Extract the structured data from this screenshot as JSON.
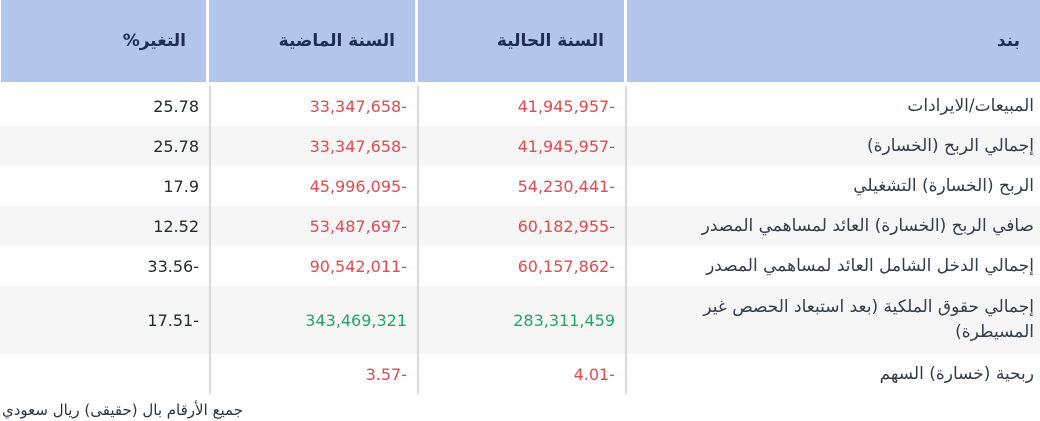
{
  "colors": {
    "header_bg": "#b3c5ea",
    "header_text": "#1e2c52",
    "label_text": "#333c4a",
    "negative_value": "#e04a50",
    "positive_value": "#21a567",
    "plain_value": "#24292e",
    "alt_row_bg": "#f6f6f7",
    "column_divider": "#d9d9d9"
  },
  "table": {
    "columns": [
      {
        "key": "name",
        "label": "بند"
      },
      {
        "key": "current",
        "label": "السنة الحالية"
      },
      {
        "key": "previous",
        "label": "السنة الماضية"
      },
      {
        "key": "change",
        "label": "التغير%"
      }
    ],
    "rows": [
      {
        "name": "المبيعات/الايرادات",
        "current": "41,945,957-",
        "previous": "33,347,658-",
        "change": "25.78"
      },
      {
        "name": "إجمالي الربح (الخسارة)",
        "current": "41,945,957-",
        "previous": "33,347,658-",
        "change": "25.78"
      },
      {
        "name": "الربح (الخسارة) التشغيلي",
        "current": "54,230,441-",
        "previous": "45,996,095-",
        "change": "17.9"
      },
      {
        "name": "صافي الربح (الخسارة) العائد لمساهمي المصدر",
        "current": "60,182,955-",
        "previous": "53,487,697-",
        "change": "12.52"
      },
      {
        "name": "إجمالي الدخل الشامل العائد لمساهمي المصدر",
        "current": "60,157,862-",
        "previous": "90,542,011-",
        "change": "33.56-"
      },
      {
        "name": "إجمالي حقوق الملكية (بعد استبعاد الحصص غير المسيطرة)",
        "current": "283,311,459",
        "previous": "343,469,321",
        "change": "17.51-"
      },
      {
        "name": "ربحية (خسارة) السهم",
        "current": "4.01-",
        "previous": "3.57-",
        "change": ""
      }
    ]
  },
  "footer": {
    "note": "جميع الأرقام بال (حقيقى) ريال سعودي"
  }
}
